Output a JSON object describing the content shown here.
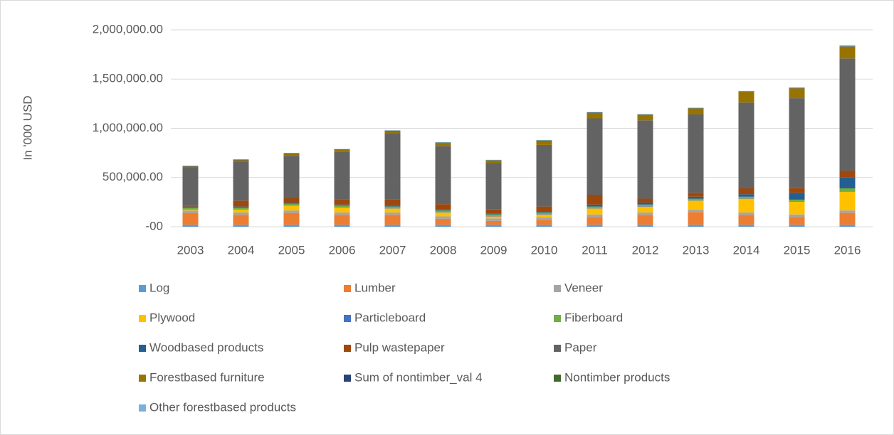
{
  "chart_data": {
    "type": "stacked_bar",
    "y_label": "In '000 USD",
    "categories": [
      "2003",
      "2004",
      "2005",
      "2006",
      "2007",
      "2008",
      "2009",
      "2010",
      "2011",
      "2012",
      "2013",
      "2014",
      "2015",
      "2016"
    ],
    "ylim": [
      0,
      2000000
    ],
    "yticks": [
      {
        "value": 0,
        "label": "-00"
      },
      {
        "value": 500000,
        "label": "500,000.00"
      },
      {
        "value": 1000000,
        "label": "1,000,000.00"
      },
      {
        "value": 1500000,
        "label": "1,500,000.00"
      },
      {
        "value": 2000000,
        "label": "2,000,000.00"
      }
    ],
    "grid": true,
    "legend": "bottom",
    "series": [
      {
        "name": "Log",
        "color": "#5b9bd5",
        "values": [
          20000,
          20000,
          20000,
          20000,
          20000,
          20000,
          20000,
          20000,
          20000,
          20000,
          20000,
          20000,
          20000,
          20000
        ]
      },
      {
        "name": "Lumber",
        "color": "#ed7d31",
        "values": [
          120000,
          100000,
          120000,
          100000,
          100000,
          60000,
          40000,
          50000,
          80000,
          100000,
          130000,
          100000,
          80000,
          120000
        ]
      },
      {
        "name": "Veneer",
        "color": "#a5a5a5",
        "values": [
          25000,
          25000,
          25000,
          25000,
          25000,
          25000,
          25000,
          25000,
          25000,
          25000,
          25000,
          25000,
          25000,
          25000
        ]
      },
      {
        "name": "Plywood",
        "color": "#ffc000",
        "values": [
          10000,
          30000,
          50000,
          50000,
          40000,
          40000,
          20000,
          30000,
          60000,
          60000,
          90000,
          140000,
          130000,
          190000
        ]
      },
      {
        "name": "Particleboard",
        "color": "#4472c4",
        "values": [
          5000,
          5000,
          5000,
          5000,
          5000,
          5000,
          5000,
          5000,
          5000,
          5000,
          5000,
          5000,
          5000,
          5000
        ]
      },
      {
        "name": "Fiberboard",
        "color": "#70ad47",
        "values": [
          15000,
          15000,
          15000,
          15000,
          15000,
          15000,
          15000,
          15000,
          15000,
          15000,
          15000,
          15000,
          15000,
          30000
        ]
      },
      {
        "name": "Woodbased products",
        "color": "#255e91",
        "values": [
          10000,
          10000,
          10000,
          10000,
          10000,
          10000,
          10000,
          10000,
          20000,
          20000,
          20000,
          25000,
          70000,
          110000
        ]
      },
      {
        "name": "Pulp wastepaper",
        "color": "#9e480e",
        "values": [
          10000,
          60000,
          55000,
          50000,
          65000,
          55000,
          40000,
          50000,
          100000,
          40000,
          40000,
          60000,
          50000,
          70000
        ]
      },
      {
        "name": "Paper",
        "color": "#636363",
        "values": [
          391000,
          396000,
          421000,
          486000,
          666000,
          591000,
          471000,
          626000,
          776000,
          796000,
          796000,
          871000,
          911000,
          1139000
        ]
      },
      {
        "name": "Forestbased furniture",
        "color": "#997300",
        "values": [
          5000,
          15000,
          20000,
          20000,
          25000,
          30000,
          25000,
          40000,
          55000,
          55000,
          60000,
          110000,
          100000,
          120000
        ]
      },
      {
        "name": "Sum of nontimber_val 4",
        "color": "#264478",
        "values": [
          3000,
          3000,
          3000,
          3000,
          3000,
          3000,
          3000,
          3000,
          3000,
          3000,
          3000,
          3000,
          3000,
          3000
        ]
      },
      {
        "name": "Nontimber products",
        "color": "#43682b",
        "values": [
          3000,
          3000,
          3000,
          3000,
          3000,
          3000,
          3000,
          3000,
          3000,
          3000,
          3000,
          3000,
          3000,
          3000
        ]
      },
      {
        "name": "Other forestbased products",
        "color": "#7cafdd",
        "values": [
          3000,
          3000,
          3000,
          3000,
          3000,
          3000,
          3000,
          3000,
          3000,
          3000,
          3000,
          3000,
          3000,
          10000
        ]
      }
    ]
  }
}
